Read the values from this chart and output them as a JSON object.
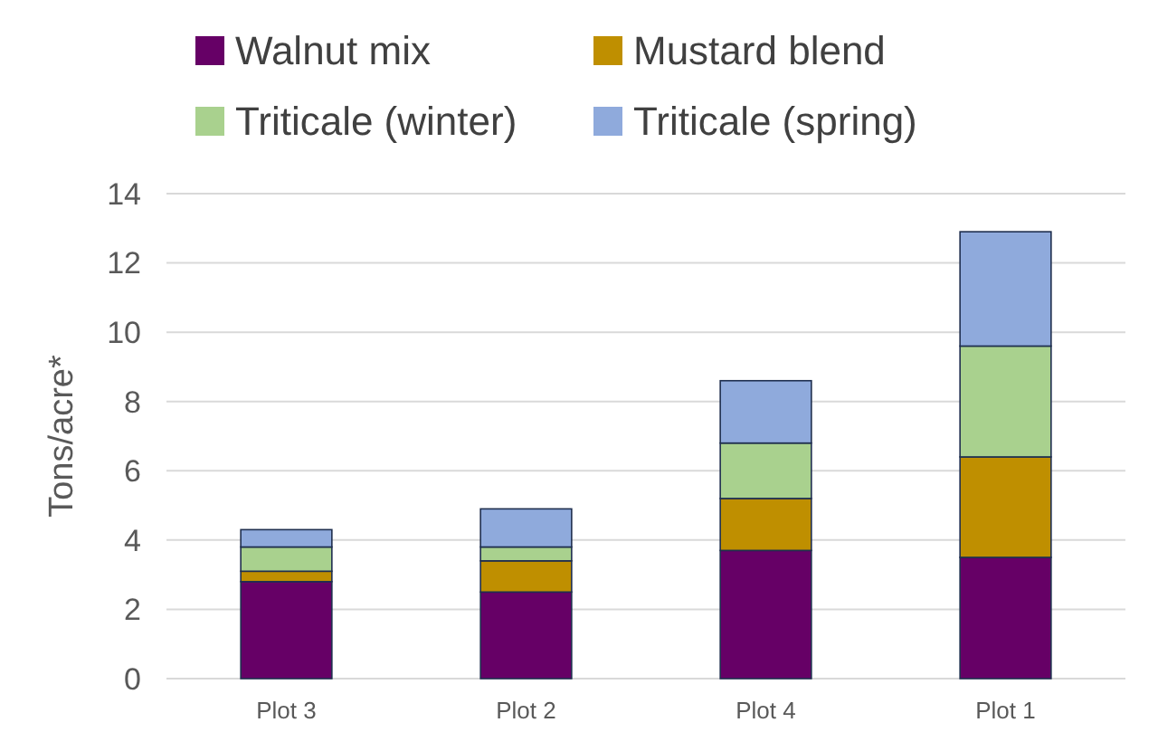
{
  "chart_data": {
    "type": "bar",
    "stacked": true,
    "ylabel": "Tons/acre*",
    "categories": [
      "Plot 3",
      "Plot 2",
      "Plot 4",
      "Plot 1"
    ],
    "series": [
      {
        "name": "Walnut mix",
        "color": "#660066",
        "values": [
          2.8,
          2.5,
          3.7,
          3.5
        ]
      },
      {
        "name": "Mustard blend",
        "color": "#bf8f00",
        "values": [
          0.3,
          0.9,
          1.5,
          2.9
        ]
      },
      {
        "name": "Triticale (winter)",
        "color": "#a9d18e",
        "values": [
          0.7,
          0.4,
          1.6,
          3.2
        ]
      },
      {
        "name": "Triticale (spring)",
        "color": "#8faadc",
        "values": [
          0.5,
          1.1,
          1.8,
          3.3
        ]
      }
    ],
    "ylim": [
      0,
      14
    ],
    "yticks": [
      0,
      2,
      4,
      6,
      8,
      10,
      12,
      14
    ],
    "grid": "y",
    "legend": "top"
  }
}
